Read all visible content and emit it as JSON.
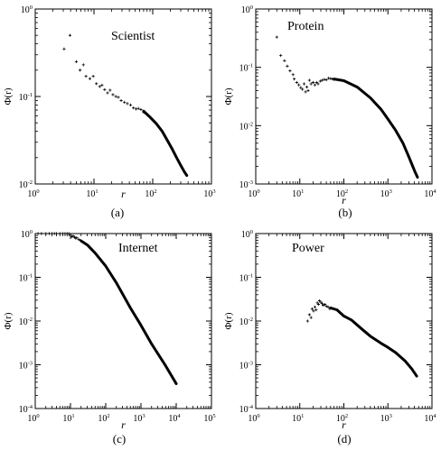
{
  "chart_data": [
    {
      "id": "a",
      "type": "scatter",
      "title": "Scientist",
      "caption": "(a)",
      "xlabel": "r",
      "ylabel": "Φ(r)",
      "xscale": "log",
      "yscale": "log",
      "xlim": [
        1,
        1000
      ],
      "ylim": [
        0.01,
        1
      ],
      "xticks": [
        {
          "v": 1,
          "b": "10",
          "e": "0"
        },
        {
          "v": 10,
          "b": "10",
          "e": "1"
        },
        {
          "v": 100,
          "b": "10",
          "e": "2"
        },
        {
          "v": 1000,
          "b": "10",
          "e": "3"
        }
      ],
      "yticks": [
        {
          "v": 0.01,
          "b": "10",
          "e": "-2"
        },
        {
          "v": 0.1,
          "b": "10",
          "e": "-1"
        },
        {
          "v": 1,
          "b": "10",
          "e": "0"
        }
      ],
      "series": [
        {
          "markers": [
            [
              3.1,
              0.35
            ],
            [
              3.9,
              0.5
            ],
            [
              5,
              0.25
            ],
            [
              5.8,
              0.2
            ],
            [
              6.6,
              0.23
            ],
            [
              7.3,
              0.17
            ],
            [
              8.5,
              0.16
            ],
            [
              9.7,
              0.17
            ],
            [
              11,
              0.14
            ],
            [
              12.5,
              0.13
            ],
            [
              13.7,
              0.135
            ],
            [
              15.2,
              0.12
            ],
            [
              17,
              0.11
            ],
            [
              18.8,
              0.118
            ],
            [
              21,
              0.105
            ],
            [
              23.5,
              0.1
            ],
            [
              26,
              0.098
            ],
            [
              29,
              0.09
            ],
            [
              33,
              0.086
            ],
            [
              37,
              0.083
            ],
            [
              42,
              0.08
            ],
            [
              47,
              0.074
            ],
            [
              52,
              0.072
            ],
            [
              57,
              0.073
            ],
            [
              63,
              0.071
            ],
            [
              70,
              0.066
            ]
          ],
          "curve": [
            [
              70,
              0.068
            ],
            [
              90,
              0.058
            ],
            [
              115,
              0.049
            ],
            [
              145,
              0.04
            ],
            [
              180,
              0.031
            ],
            [
              215,
              0.025
            ],
            [
              255,
              0.02
            ],
            [
              300,
              0.0163
            ],
            [
              345,
              0.0138
            ],
            [
              380,
              0.0125
            ]
          ]
        }
      ]
    },
    {
      "id": "b",
      "type": "scatter",
      "title": "Protein",
      "caption": "(b)",
      "xlabel": "r",
      "ylabel": "Φ(r)",
      "xscale": "log",
      "yscale": "log",
      "xlim": [
        1,
        10000
      ],
      "ylim": [
        0.001,
        1
      ],
      "xticks": [
        {
          "v": 1,
          "b": "10",
          "e": "0"
        },
        {
          "v": 10,
          "b": "10",
          "e": "1"
        },
        {
          "v": 100,
          "b": "10",
          "e": "2"
        },
        {
          "v": 1000,
          "b": "10",
          "e": "3"
        },
        {
          "v": 10000,
          "b": "10",
          "e": "4"
        }
      ],
      "yticks": [
        {
          "v": 0.001,
          "b": "10",
          "e": "-3"
        },
        {
          "v": 0.01,
          "b": "10",
          "e": "-2"
        },
        {
          "v": 0.1,
          "b": "10",
          "e": "-1"
        },
        {
          "v": 1,
          "b": "10",
          "e": "0"
        }
      ],
      "series": [
        {
          "markers": [
            [
              3,
              0.33
            ],
            [
              3.7,
              0.16
            ],
            [
              4.5,
              0.13
            ],
            [
              5.2,
              0.105
            ],
            [
              6,
              0.087
            ],
            [
              7,
              0.075
            ],
            [
              7.5,
              0.063
            ],
            [
              8.5,
              0.055
            ],
            [
              9.5,
              0.05
            ],
            [
              10.5,
              0.045
            ],
            [
              11.5,
              0.042
            ],
            [
              12.5,
              0.052
            ],
            [
              13.5,
              0.038
            ],
            [
              14.5,
              0.046
            ],
            [
              15.5,
              0.04
            ],
            [
              16.5,
              0.06
            ],
            [
              18,
              0.052
            ],
            [
              20,
              0.055
            ],
            [
              22,
              0.05
            ],
            [
              24,
              0.055
            ],
            [
              26,
              0.052
            ],
            [
              29,
              0.058
            ],
            [
              32,
              0.06
            ],
            [
              36,
              0.062
            ],
            [
              40,
              0.061
            ],
            [
              45,
              0.065
            ],
            [
              50,
              0.064
            ],
            [
              55,
              0.063
            ],
            [
              60,
              0.062
            ]
          ],
          "curve": [
            [
              60,
              0.063
            ],
            [
              100,
              0.059
            ],
            [
              200,
              0.046
            ],
            [
              400,
              0.03
            ],
            [
              700,
              0.019
            ],
            [
              1000,
              0.013
            ],
            [
              1500,
              0.0083
            ],
            [
              2200,
              0.005
            ],
            [
              3000,
              0.0029
            ],
            [
              4000,
              0.0017
            ],
            [
              4700,
              0.0013
            ]
          ]
        }
      ]
    },
    {
      "id": "c",
      "type": "scatter",
      "title": "Internet",
      "caption": "(c)",
      "xlabel": "r",
      "ylabel": "Φ(r)",
      "xscale": "log",
      "yscale": "log",
      "xlim": [
        1,
        100000
      ],
      "ylim": [
        0.0001,
        1
      ],
      "xticks": [
        {
          "v": 1,
          "b": "10",
          "e": "0"
        },
        {
          "v": 10,
          "b": "10",
          "e": "1"
        },
        {
          "v": 100,
          "b": "10",
          "e": "2"
        },
        {
          "v": 1000,
          "b": "10",
          "e": "3"
        },
        {
          "v": 10000,
          "b": "10",
          "e": "4"
        },
        {
          "v": 100000,
          "b": "10",
          "e": "5"
        }
      ],
      "yticks": [
        {
          "v": 0.0001,
          "b": "10",
          "e": "-4"
        },
        {
          "v": 0.001,
          "b": "10",
          "e": "-3"
        },
        {
          "v": 0.01,
          "b": "10",
          "e": "-2"
        },
        {
          "v": 0.1,
          "b": "10",
          "e": "-1"
        },
        {
          "v": 1,
          "b": "10",
          "e": "0"
        }
      ],
      "series": [
        {
          "markers": [
            [
              1.2,
              1
            ],
            [
              1.5,
              1
            ],
            [
              2,
              1
            ],
            [
              2.5,
              1
            ],
            [
              3,
              1
            ],
            [
              3.5,
              1
            ],
            [
              4,
              1
            ],
            [
              5,
              1
            ],
            [
              6,
              1
            ],
            [
              7,
              1
            ],
            [
              8,
              1
            ],
            [
              9,
              1
            ],
            [
              10,
              0.92
            ],
            [
              11,
              0.85
            ],
            [
              12,
              0.88
            ],
            [
              13,
              0.82
            ],
            [
              14,
              0.79
            ],
            [
              15,
              0.8
            ],
            [
              17,
              0.74
            ],
            [
              19,
              0.7
            ]
          ],
          "curve": [
            [
              20,
              0.68
            ],
            [
              30,
              0.55
            ],
            [
              50,
              0.36
            ],
            [
              100,
              0.18
            ],
            [
              200,
              0.075
            ],
            [
              500,
              0.02
            ],
            [
              1000,
              0.008
            ],
            [
              2000,
              0.003
            ],
            [
              5000,
              0.00095
            ],
            [
              10000,
              0.00037
            ]
          ]
        }
      ]
    },
    {
      "id": "d",
      "type": "scatter",
      "title": "Power",
      "caption": "(d)",
      "xlabel": "r",
      "ylabel": "Φ(r)",
      "xscale": "log",
      "yscale": "log",
      "xlim": [
        1,
        10000
      ],
      "ylim": [
        0.0001,
        1
      ],
      "xticks": [
        {
          "v": 1,
          "b": "10",
          "e": "0"
        },
        {
          "v": 10,
          "b": "10",
          "e": "1"
        },
        {
          "v": 100,
          "b": "10",
          "e": "2"
        },
        {
          "v": 1000,
          "b": "10",
          "e": "3"
        },
        {
          "v": 10000,
          "b": "10",
          "e": "4"
        }
      ],
      "yticks": [
        {
          "v": 0.0001,
          "b": "10",
          "e": "-4"
        },
        {
          "v": 0.001,
          "b": "10",
          "e": "-3"
        },
        {
          "v": 0.01,
          "b": "10",
          "e": "-2"
        },
        {
          "v": 0.1,
          "b": "10",
          "e": "-1"
        },
        {
          "v": 1,
          "b": "10",
          "e": "0"
        }
      ],
      "series": [
        {
          "markers": [
            [
              15,
              0.01
            ],
            [
              16.5,
              0.014
            ],
            [
              18,
              0.012
            ],
            [
              19,
              0.019
            ],
            [
              20.5,
              0.017
            ],
            [
              22,
              0.021
            ],
            [
              23.5,
              0.018
            ],
            [
              25,
              0.026
            ],
            [
              26.5,
              0.024
            ],
            [
              28,
              0.029
            ],
            [
              30,
              0.027
            ],
            [
              32,
              0.025
            ],
            [
              34,
              0.023
            ],
            [
              37,
              0.024
            ],
            [
              40,
              0.022
            ],
            [
              44,
              0.021
            ],
            [
              48,
              0.019
            ]
          ],
          "curve": [
            [
              50,
              0.02
            ],
            [
              70,
              0.018
            ],
            [
              100,
              0.013
            ],
            [
              150,
              0.0105
            ],
            [
              250,
              0.0067
            ],
            [
              400,
              0.0045
            ],
            [
              700,
              0.0031
            ],
            [
              1000,
              0.0025
            ],
            [
              1500,
              0.0019
            ],
            [
              2500,
              0.0012
            ],
            [
              3500,
              0.0008
            ],
            [
              4500,
              0.00055
            ]
          ]
        }
      ]
    }
  ]
}
